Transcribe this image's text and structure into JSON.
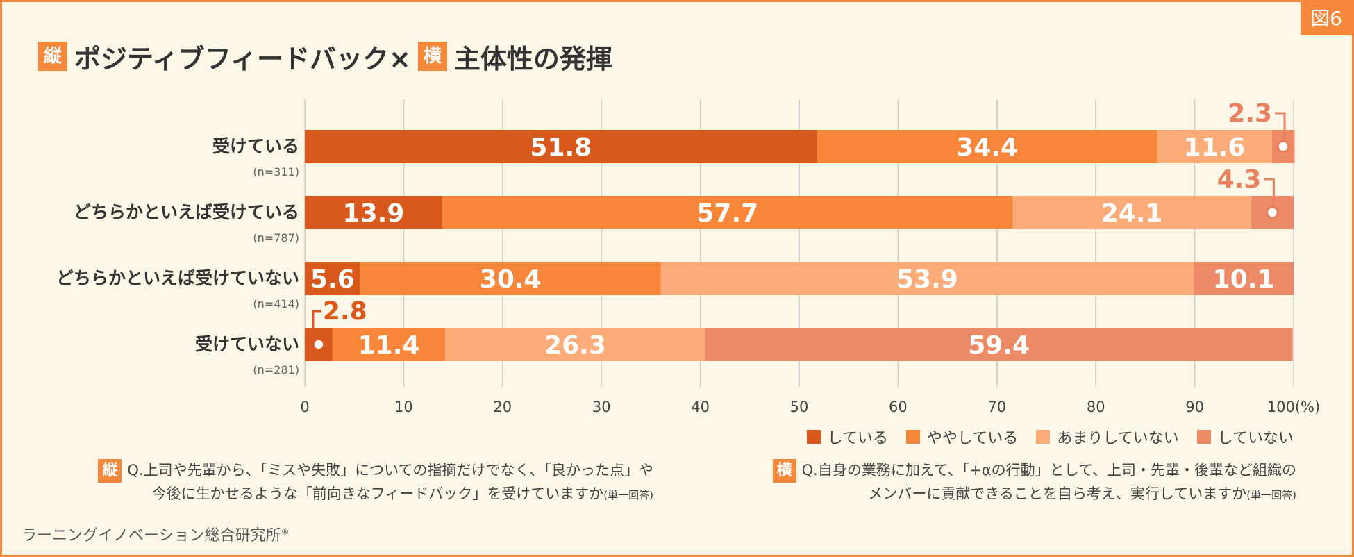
{
  "figure_label": "図6",
  "title": {
    "tag_vertical": "縦",
    "part1": "ポジティブフィードバック×",
    "tag_horizontal": "横",
    "part2": "主体性の発揮"
  },
  "colors": {
    "series": [
      "#d9581c",
      "#f8863a",
      "#fcac78",
      "#ec8b66"
    ],
    "grid": "#cccccc",
    "accent": "#f5883a",
    "callout": "#e9805f"
  },
  "chart_data": {
    "type": "bar",
    "orientation": "horizontal",
    "stacked": true,
    "categories": [
      "受けている",
      "どちらかといえば受けている",
      "どちらかといえば受けていない",
      "受けていない"
    ],
    "n_labels": [
      "(n=311)",
      "(n=787)",
      "(n=414)",
      "(n=281)"
    ],
    "series": [
      {
        "name": "している",
        "values": [
          51.8,
          13.9,
          5.6,
          2.8
        ]
      },
      {
        "name": "ややしている",
        "values": [
          34.4,
          57.7,
          30.4,
          11.4
        ]
      },
      {
        "name": "あまりしていない",
        "values": [
          11.6,
          24.1,
          53.9,
          26.3
        ]
      },
      {
        "name": "していない",
        "values": [
          2.3,
          4.3,
          10.1,
          59.4
        ]
      }
    ],
    "xlim": [
      0,
      100
    ],
    "xticks": [
      "0",
      "10",
      "20",
      "30",
      "40",
      "50",
      "60",
      "70",
      "80",
      "90",
      "100(%)"
    ],
    "grid": true,
    "legend_position": "bottom-right"
  },
  "questions": {
    "vertical_tag": "縦",
    "vertical_line1": "Q.上司や先輩から、「ミスや失敗」についての指摘だけでなく、「良かった点」や",
    "vertical_line2": "今後に生かせるような「前向きなフィードバック」を受けていますか",
    "vertical_note": "(単一回答)",
    "horizontal_tag": "横",
    "horizontal_line1": "Q.自身の業務に加えて、「+αの行動」として、上司・先輩・後輩など組織の",
    "horizontal_line2": "メンバーに貢献できることを自ら考え、実行していますか",
    "horizontal_note": "(単一回答)"
  },
  "footer": {
    "text": "ラーニングイノベーション総合研究所",
    "mark": "®"
  }
}
